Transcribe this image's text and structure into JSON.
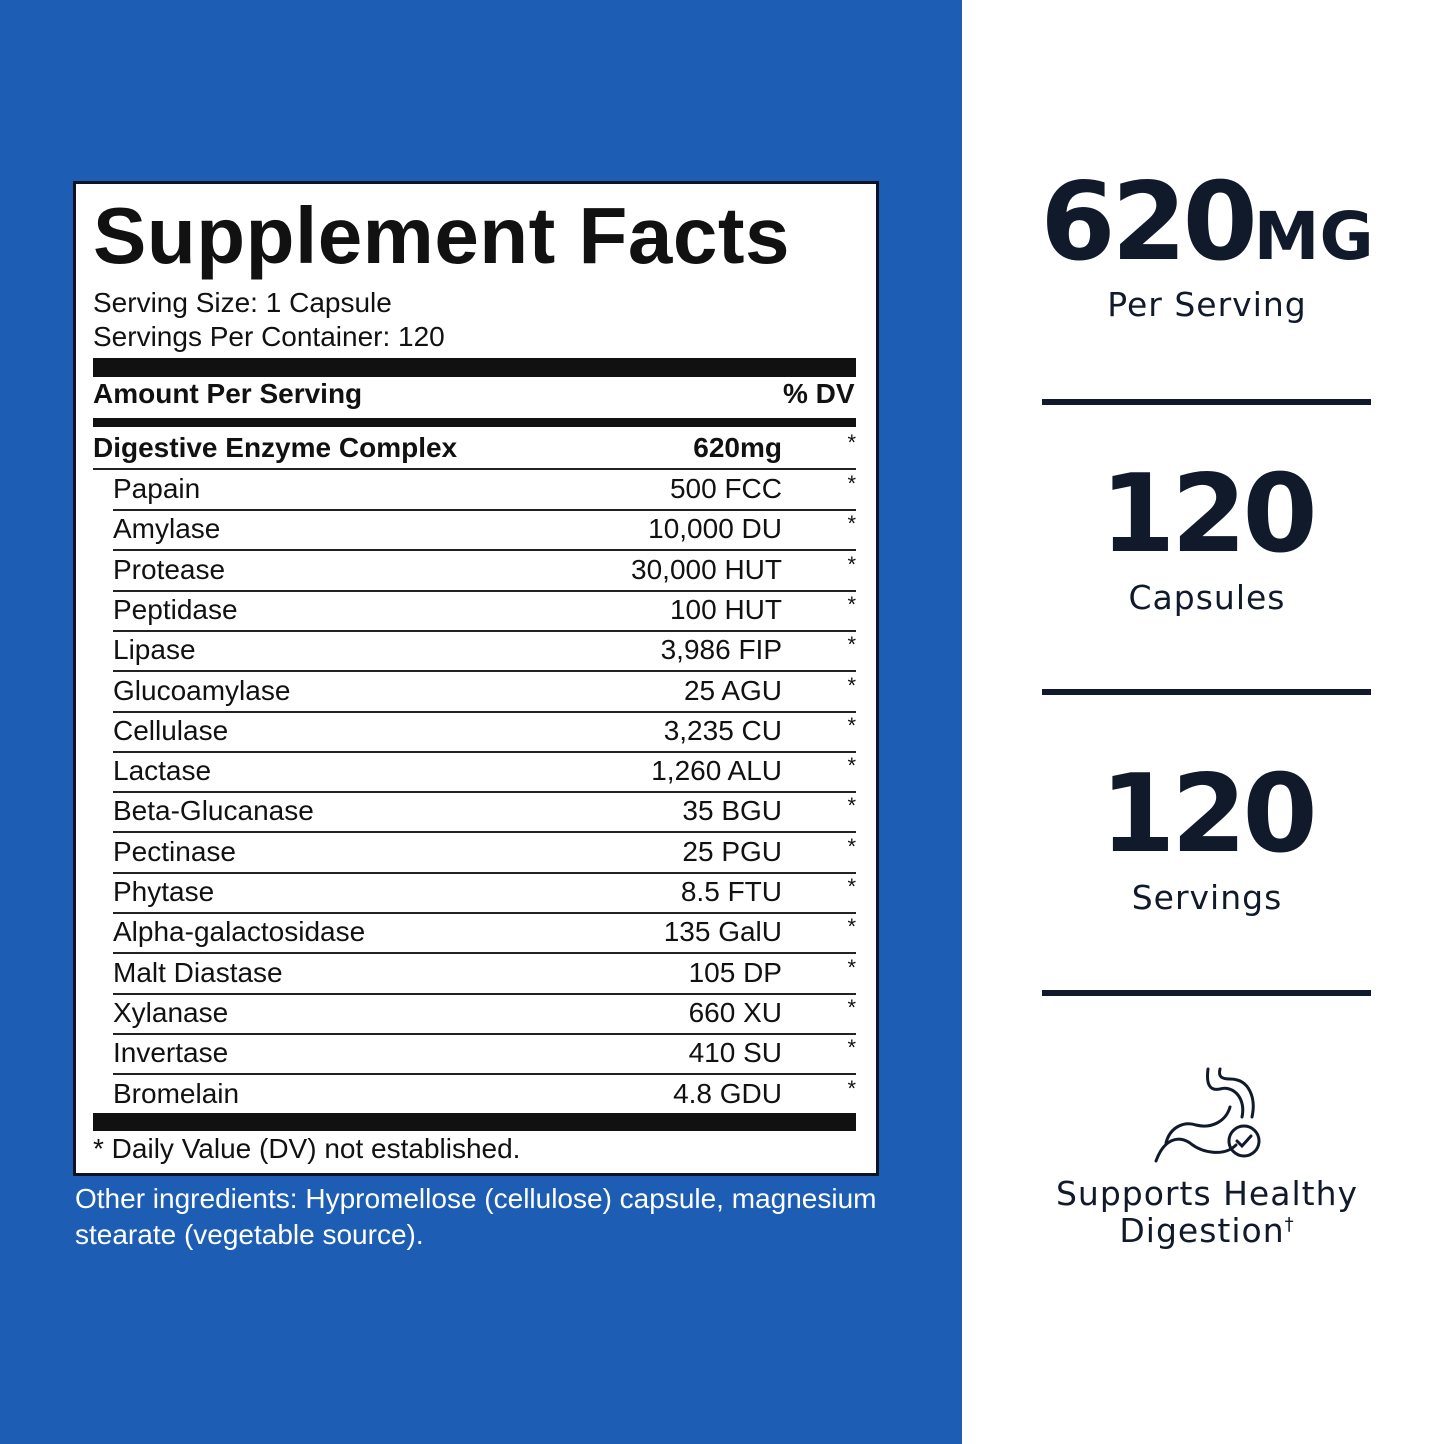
{
  "facts": {
    "title": "Supplement Facts",
    "serving_size": "Serving Size: 1 Capsule",
    "servings_per_container": "Servings Per Container: 120",
    "header_left": "Amount Per Serving",
    "header_right": "% DV",
    "complex": {
      "name": "Digestive Enzyme Complex",
      "amount": "620mg",
      "dv": "*"
    },
    "rows": [
      [
        "Papain",
        "500 FCC",
        "*"
      ],
      [
        "Amylase",
        "10,000 DU",
        "*"
      ],
      [
        "Protease",
        "30,000 HUT",
        "*"
      ],
      [
        "Peptidase",
        "100 HUT",
        "*"
      ],
      [
        "Lipase",
        "3,986 FIP",
        "*"
      ],
      [
        "Glucoamylase",
        "25 AGU",
        "*"
      ],
      [
        "Cellulase",
        "3,235 CU",
        "*"
      ],
      [
        "Lactase",
        "1,260 ALU",
        "*"
      ],
      [
        "Beta-Glucanase",
        "35 BGU",
        "*"
      ],
      [
        "Pectinase",
        "25 PGU",
        "*"
      ],
      [
        "Phytase",
        "8.5 FTU",
        "*"
      ],
      [
        "Alpha-galactosidase",
        "135  GalU",
        "*"
      ],
      [
        "Malt Diastase",
        "105 DP",
        "*"
      ],
      [
        "Xylanase",
        "660 XU",
        "*"
      ],
      [
        "Invertase",
        "410 SU",
        "*"
      ],
      [
        "Bromelain",
        "4.8 GDU",
        "*"
      ]
    ],
    "footnote": "* Daily Value (DV) not established.",
    "other_ingredients": [
      "Other ingredients: Hypromellose (cellulose) capsule, magnesium",
      "stearate (vegetable source)."
    ]
  },
  "stats": [
    {
      "value": "620",
      "unit": "MG",
      "label": "Per Serving"
    },
    {
      "value": "120",
      "label": "Capsules"
    },
    {
      "value": "120",
      "label": "Servings"
    }
  ],
  "benefit": {
    "lines": [
      "Supports Healthy",
      "Digestion"
    ],
    "mark": "†"
  }
}
